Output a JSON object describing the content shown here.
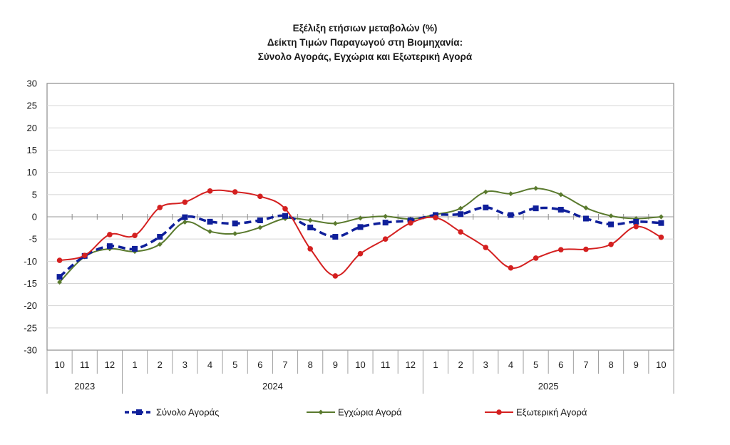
{
  "chart_data": {
    "type": "line",
    "title": [
      "Εξέλιξη ετήσιων μεταβολών (%)",
      "Δείκτη Τιμών Παραγωγού στη Βιομηχανία:",
      "Σύνολο Αγοράς, Εγχώρια και Εξωτερική Αγορά"
    ],
    "xlabel": "",
    "ylabel": "",
    "ylim": [
      -30,
      30
    ],
    "yticks": [
      30,
      25,
      20,
      15,
      10,
      5,
      0,
      -5,
      -10,
      -15,
      -20,
      -25,
      -30
    ],
    "grid": true,
    "legend_position": "bottom",
    "categories": [
      "10",
      "11",
      "12",
      "1",
      "2",
      "3",
      "4",
      "5",
      "6",
      "7",
      "8",
      "9",
      "10",
      "11",
      "12",
      "1",
      "2",
      "3",
      "4",
      "5",
      "6",
      "7",
      "8",
      "9",
      "10"
    ],
    "year_groups": [
      {
        "label": "2023",
        "count": 3
      },
      {
        "label": "2024",
        "count": 12
      },
      {
        "label": "2025",
        "count": 10
      }
    ],
    "series": [
      {
        "name": "Σύνολο Αγοράς",
        "color": "#0f1f9a",
        "style": "dashed",
        "marker": "square",
        "values": [
          -13.5,
          -8.8,
          -6.6,
          -7.2,
          -4.5,
          -0.1,
          -1.1,
          -1.5,
          -0.8,
          0.2,
          -2.4,
          -4.5,
          -2.3,
          -1.3,
          -0.8,
          0.4,
          0.6,
          2.1,
          0.4,
          1.9,
          1.6,
          -0.4,
          -1.7,
          -1.1,
          -1.4
        ]
      },
      {
        "name": "Εγχώρια Αγορά",
        "color": "#5a7a2e",
        "style": "solid",
        "marker": "diamond",
        "values": [
          -14.7,
          -9.0,
          -7.2,
          -7.8,
          -6.2,
          -1.2,
          -3.3,
          -3.8,
          -2.4,
          -0.4,
          -0.8,
          -1.5,
          -0.3,
          0.1,
          -0.5,
          0.5,
          1.9,
          5.6,
          5.2,
          6.4,
          5.0,
          2.0,
          0.2,
          -0.4,
          0.0
        ]
      },
      {
        "name": "Εξωτερική Αγορά",
        "color": "#d42020",
        "style": "solid",
        "marker": "circle",
        "values": [
          -9.8,
          -8.7,
          -4.0,
          -4.2,
          2.1,
          3.3,
          5.8,
          5.6,
          4.6,
          1.8,
          -7.2,
          -13.3,
          -8.3,
          -5.0,
          -1.4,
          -0.2,
          -3.4,
          -6.9,
          -11.5,
          -9.3,
          -7.4,
          -7.3,
          -6.2,
          -2.2,
          -4.6
        ]
      }
    ]
  }
}
